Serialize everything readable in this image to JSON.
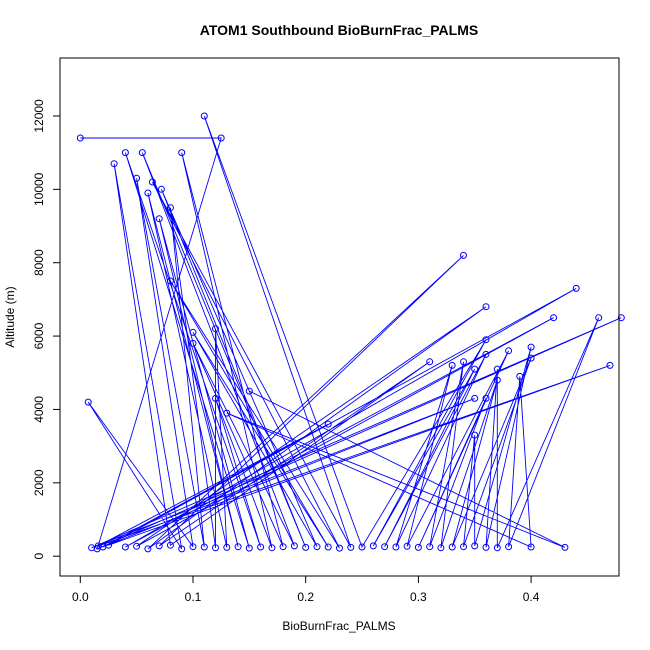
{
  "chart_data": {
    "type": "scatter",
    "title": "ATOM1 Southbound BioBurnFrac_PALMS",
    "xlabel": "BioBurnFrac_PALMS",
    "ylabel": "Altitude (m)",
    "xlim": [
      -0.018,
      0.478
    ],
    "ylim": [
      -540,
      13580
    ],
    "xticks": [
      0.0,
      0.1,
      0.2,
      0.3,
      0.4
    ],
    "xtick_labels": [
      "0.0",
      "0.1",
      "0.2",
      "0.3",
      "0.4"
    ],
    "yticks": [
      0,
      2000,
      4000,
      6000,
      8000,
      10000,
      12000
    ],
    "ytick_labels": [
      "0",
      "2000",
      "4000",
      "6000",
      "8000",
      "10000",
      "12000"
    ],
    "grid": false,
    "legend": "none",
    "marker": "open-circle",
    "connected": true,
    "color": "#0000ff",
    "series": [
      {
        "x": [
          0.0,
          0.125,
          0.015,
          0.48,
          0.01,
          0.35,
          0.02,
          0.22,
          0.016,
          0.47,
          0.025,
          0.44,
          0.04,
          0.42,
          0.05,
          0.36,
          0.06,
          0.34,
          0.07,
          0.31,
          0.08,
          0.03,
          0.09,
          0.007,
          0.1,
          0.05,
          0.11,
          0.08,
          0.12,
          0.12,
          0.13,
          0.06,
          0.14,
          0.07,
          0.15,
          0.04,
          0.16,
          0.12,
          0.17,
          0.09,
          0.18,
          0.1,
          0.19,
          0.055,
          0.2,
          0.072,
          0.21,
          0.1,
          0.22,
          0.08,
          0.23,
          0.064,
          0.24,
          0.11,
          0.25,
          0.36,
          0.26,
          0.35,
          0.27,
          0.36,
          0.28,
          0.33,
          0.29,
          0.38,
          0.3,
          0.36,
          0.31,
          0.34,
          0.32,
          0.37,
          0.33,
          0.4,
          0.34,
          0.35,
          0.35,
          0.4,
          0.36,
          0.37,
          0.37,
          0.46,
          0.38,
          0.39,
          0.4,
          0.13,
          0.43,
          0.15
        ],
        "y": [
          11400,
          11400,
          200,
          6500,
          230,
          4300,
          250,
          3600,
          280,
          5200,
          300,
          7300,
          250,
          6500,
          270,
          6800,
          200,
          8200,
          280,
          5300,
          300,
          10700,
          200,
          4200,
          260,
          10300,
          250,
          9500,
          230,
          6200,
          240,
          9900,
          260,
          9200,
          220,
          11000,
          250,
          4300,
          230,
          11000,
          260,
          5800,
          280,
          11000,
          240,
          10000,
          260,
          6100,
          250,
          7500,
          220,
          10200,
          240,
          12000,
          250,
          5900,
          280,
          5100,
          260,
          5500,
          250,
          5200,
          270,
          5600,
          240,
          4300,
          260,
          5300,
          230,
          4800,
          250,
          5400,
          260,
          3300,
          280,
          5700,
          240,
          5100,
          230,
          6500,
          260,
          4900,
          250,
          3900,
          240,
          4500
        ]
      }
    ]
  }
}
